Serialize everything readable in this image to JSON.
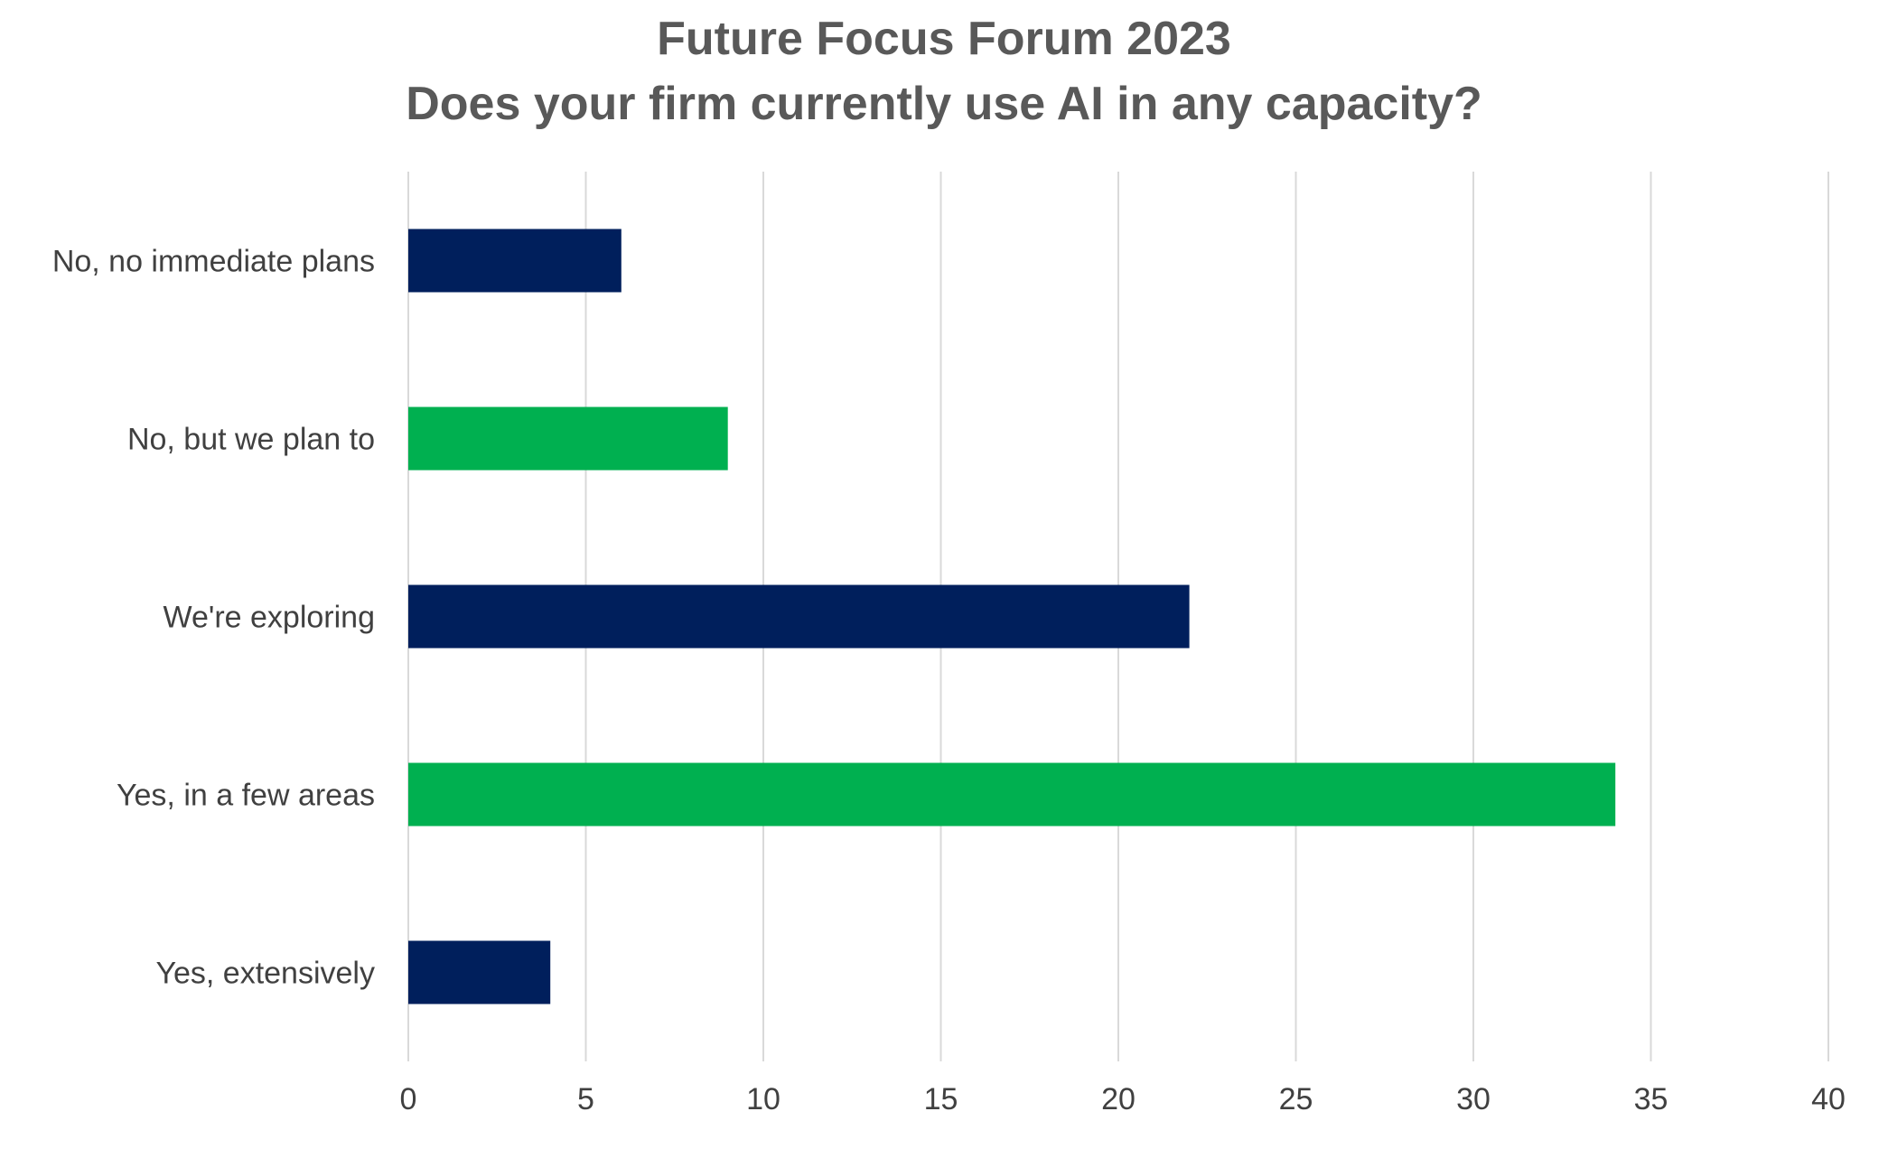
{
  "chart_data": {
    "type": "bar",
    "orientation": "horizontal",
    "title": "Future Focus Forum 2023",
    "subtitle": "Does your firm currently use AI in any capacity?",
    "categories": [
      "No, no immediate plans",
      "No, but we plan to",
      "We're exploring",
      "Yes, in a few areas",
      "Yes, extensively"
    ],
    "values": [
      6,
      9,
      22,
      34,
      4
    ],
    "bar_colors": [
      "#001f5c",
      "#00b050",
      "#001f5c",
      "#00b050",
      "#001f5c"
    ],
    "xlabel": "",
    "ylabel": "",
    "xlim": [
      0,
      40
    ],
    "x_ticks": [
      "0",
      "5",
      "10",
      "15",
      "20",
      "25",
      "30",
      "35",
      "40"
    ],
    "grid": true,
    "legend": "none"
  }
}
